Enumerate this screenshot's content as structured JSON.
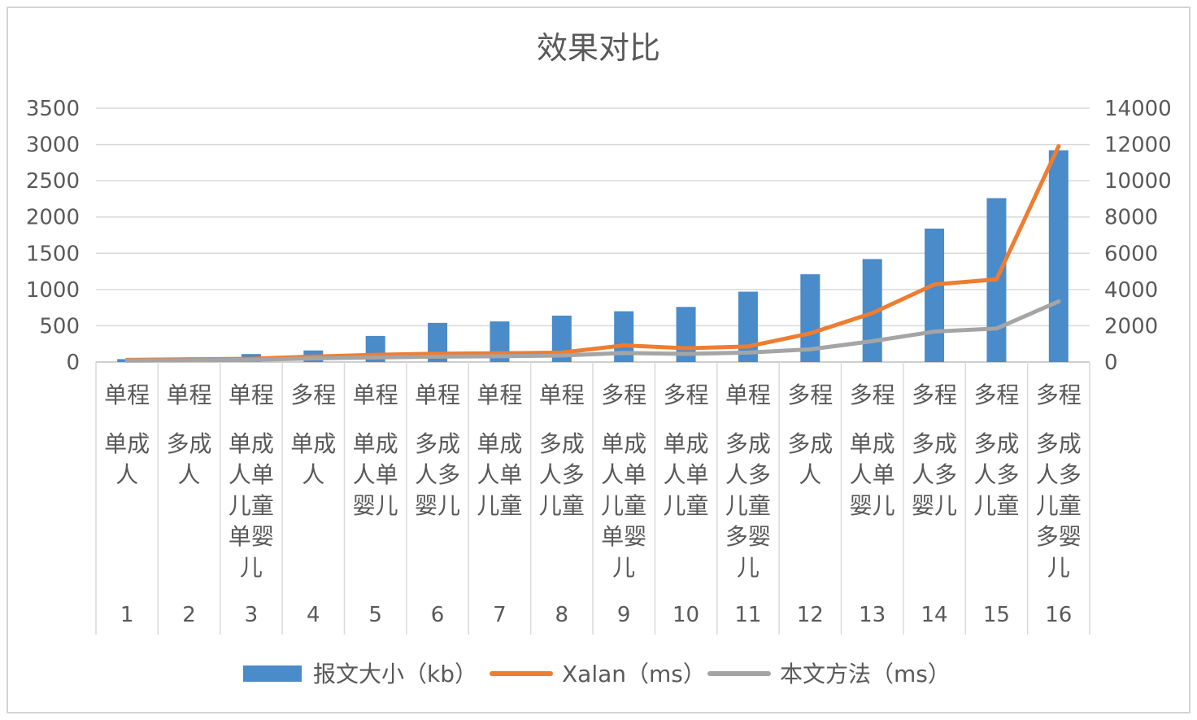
{
  "chart_data": {
    "type": "bar",
    "title": "效果对比",
    "categories": [
      {
        "index": "1",
        "group": "单程",
        "lines": [
          "单成",
          "人"
        ]
      },
      {
        "index": "2",
        "group": "单程",
        "lines": [
          "多成",
          "人"
        ]
      },
      {
        "index": "3",
        "group": "单程",
        "lines": [
          "单成",
          "人单",
          "儿童",
          "单婴",
          "儿"
        ]
      },
      {
        "index": "4",
        "group": "多程",
        "lines": [
          "单成",
          "人"
        ]
      },
      {
        "index": "5",
        "group": "单程",
        "lines": [
          "单成",
          "人单",
          "婴儿"
        ]
      },
      {
        "index": "6",
        "group": "单程",
        "lines": [
          "多成",
          "人多",
          "婴儿"
        ]
      },
      {
        "index": "7",
        "group": "单程",
        "lines": [
          "单成",
          "人单",
          "儿童"
        ]
      },
      {
        "index": "8",
        "group": "单程",
        "lines": [
          "多成",
          "人多",
          "儿童"
        ]
      },
      {
        "index": "9",
        "group": "多程",
        "lines": [
          "单成",
          "人单",
          "儿童",
          "单婴",
          "儿"
        ]
      },
      {
        "index": "10",
        "group": "多程",
        "lines": [
          "单成",
          "人单",
          "儿童"
        ]
      },
      {
        "index": "11",
        "group": "单程",
        "lines": [
          "多成",
          "人多",
          "儿童",
          "多婴",
          "儿"
        ]
      },
      {
        "index": "12",
        "group": "多程",
        "lines": [
          "多成",
          "人"
        ]
      },
      {
        "index": "13",
        "group": "多程",
        "lines": [
          "单成",
          "人单",
          "婴儿"
        ]
      },
      {
        "index": "14",
        "group": "多程",
        "lines": [
          "多成",
          "人多",
          "婴儿"
        ]
      },
      {
        "index": "15",
        "group": "多程",
        "lines": [
          "多成",
          "人多",
          "儿童"
        ]
      },
      {
        "index": "16",
        "group": "多程",
        "lines": [
          "多成",
          "人多",
          "儿童",
          "多婴",
          "儿"
        ]
      }
    ],
    "y_left": {
      "min": 0,
      "max": 3500,
      "step": 500,
      "ticks": [
        "0",
        "500",
        "1000",
        "1500",
        "2000",
        "2500",
        "3000",
        "3500"
      ]
    },
    "y_right": {
      "min": 0,
      "max": 14000,
      "step": 2000,
      "ticks": [
        "0",
        "2000",
        "4000",
        "6000",
        "8000",
        "10000",
        "12000",
        "14000"
      ]
    },
    "series": [
      {
        "name": "报文大小（kb）",
        "type": "bar",
        "axis": "left",
        "color": "#4a8bc9",
        "values": [
          40,
          50,
          110,
          160,
          360,
          540,
          560,
          640,
          700,
          760,
          970,
          1210,
          1420,
          1840,
          2260,
          2920
        ]
      },
      {
        "name": "Xalan（ms）",
        "type": "line",
        "axis": "right",
        "color": "#ee7d31",
        "values": [
          120,
          150,
          180,
          300,
          400,
          460,
          480,
          520,
          920,
          760,
          860,
          1580,
          2700,
          4280,
          4560,
          11900
        ]
      },
      {
        "name": "本文方法（ms）",
        "type": "line",
        "axis": "right",
        "color": "#a5a5a5",
        "values": [
          80,
          100,
          120,
          200,
          250,
          300,
          320,
          360,
          500,
          450,
          520,
          700,
          1150,
          1680,
          1850,
          3340
        ]
      }
    ],
    "grid": true,
    "legend": "bottom"
  }
}
